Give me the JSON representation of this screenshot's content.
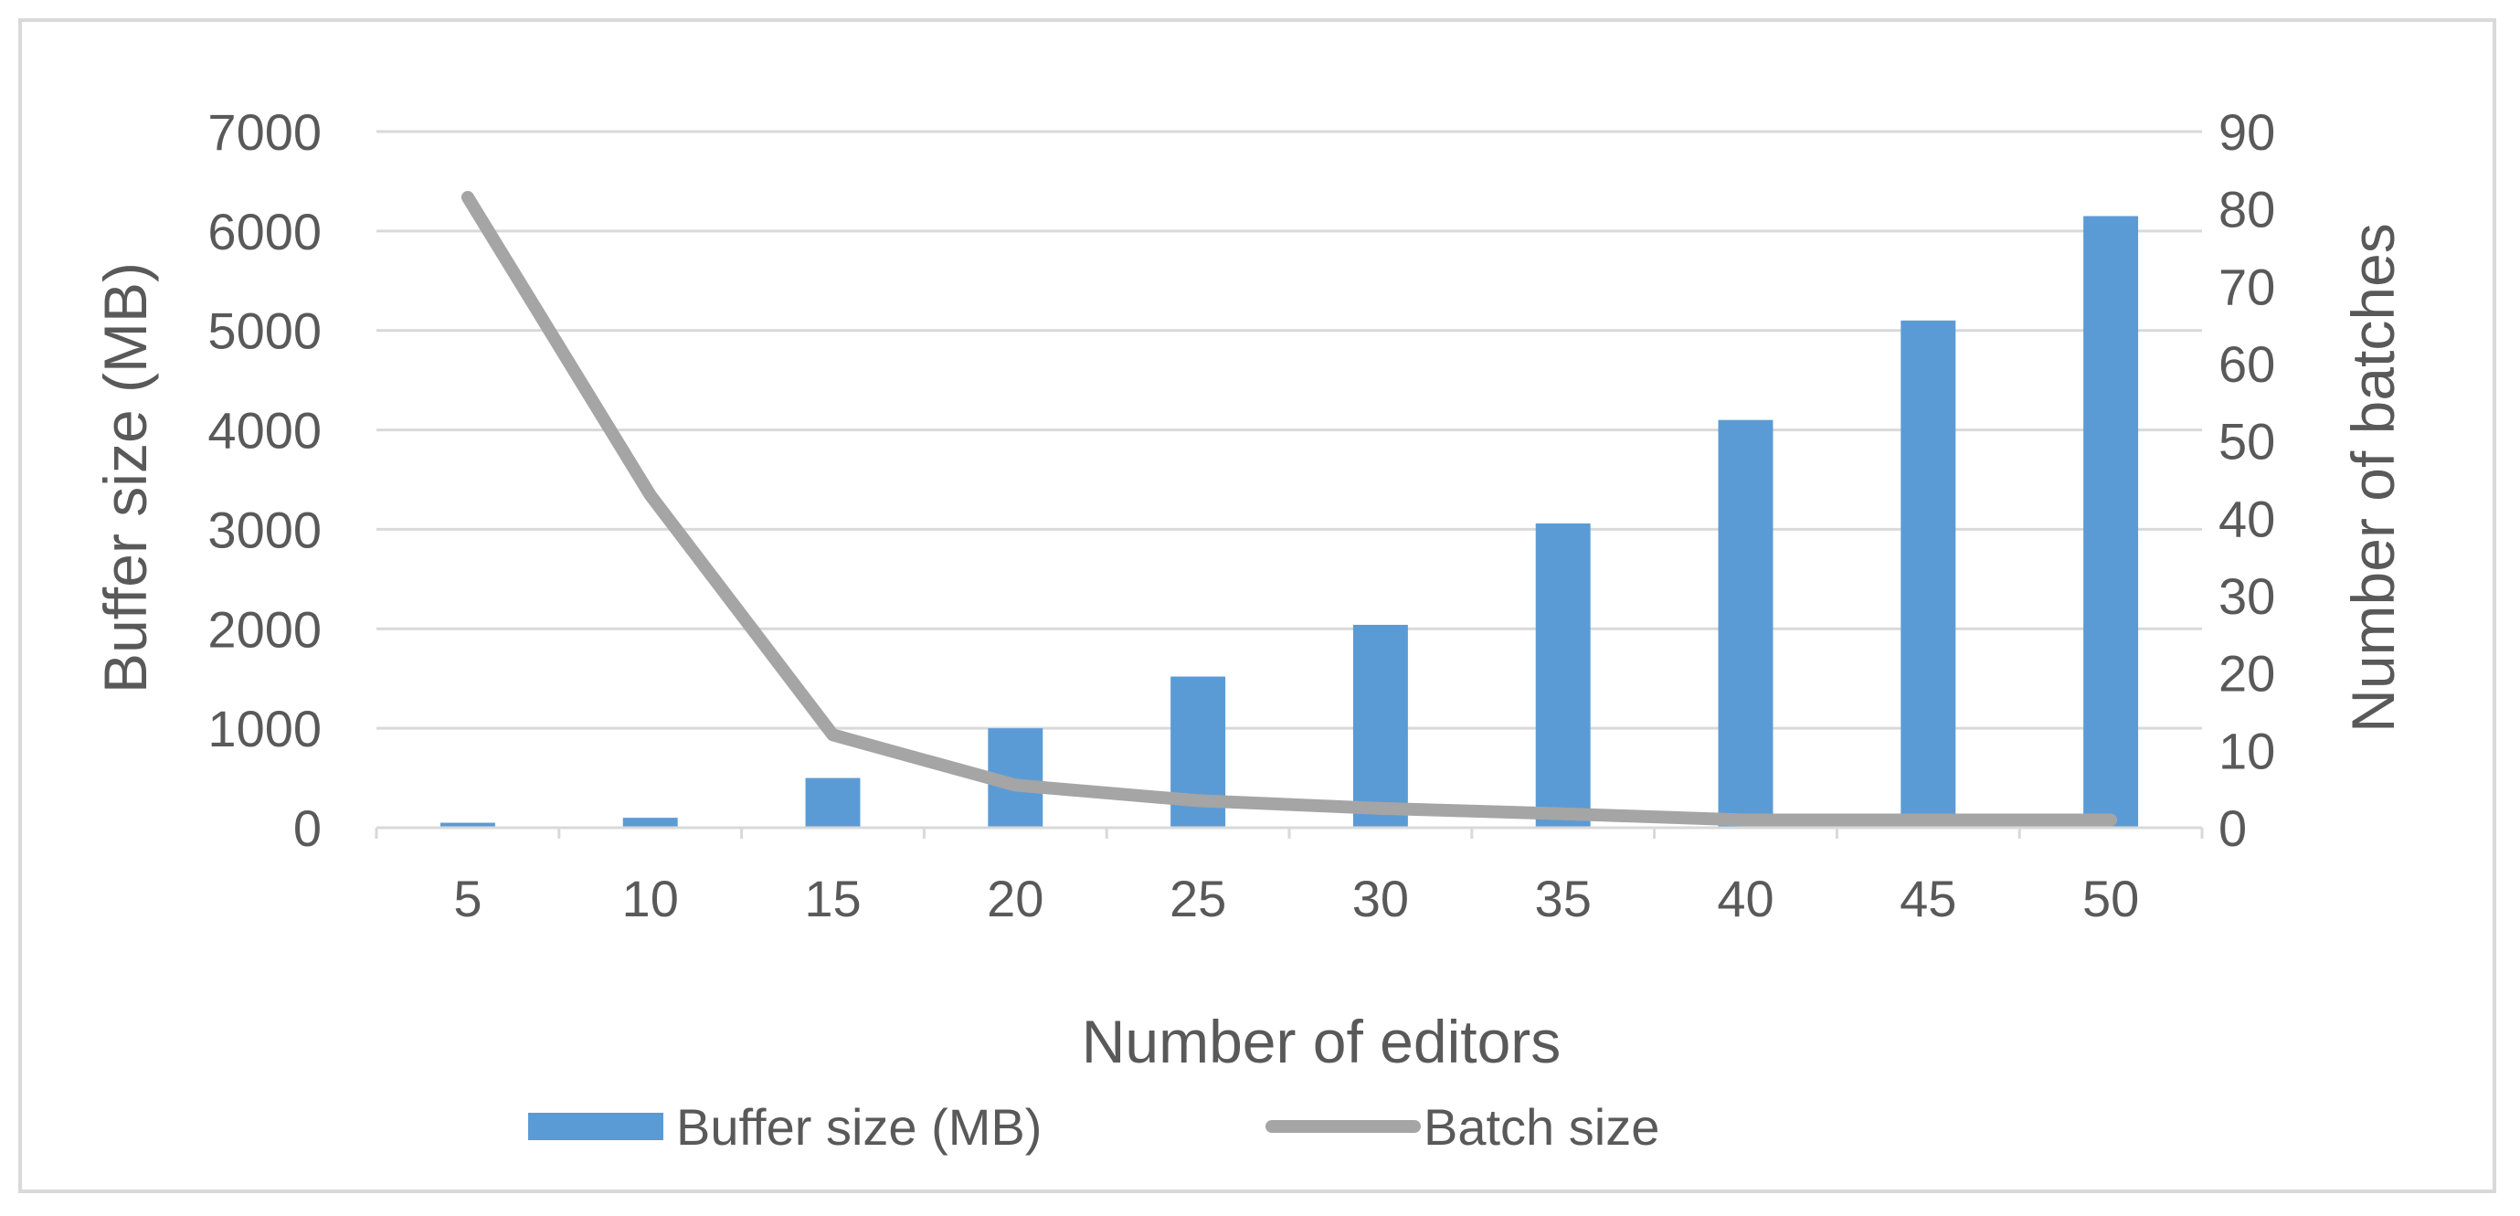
{
  "chart_data": {
    "type": "bar",
    "title": "",
    "categories": [
      "5",
      "10",
      "15",
      "20",
      "25",
      "30",
      "35",
      "40",
      "45",
      "50"
    ],
    "xlabel": "Number of editors",
    "ylabel": "Buffer size (MB)",
    "y2label": "Number of batches",
    "ylim": [
      0,
      7000
    ],
    "y2lim": [
      0,
      90
    ],
    "yticks": [
      "0",
      "1000",
      "2000",
      "3000",
      "4000",
      "5000",
      "6000",
      "7000"
    ],
    "y2ticks": [
      "0",
      "10",
      "20",
      "30",
      "40",
      "50",
      "60",
      "70",
      "80",
      "90"
    ],
    "grid": true,
    "legend_position": "bottom",
    "series": [
      {
        "name": "Buffer size (MB)",
        "type": "bar",
        "axis": "left",
        "color": "#5b9bd5",
        "values": [
          50,
          100,
          500,
          1000,
          1520,
          2040,
          3060,
          4100,
          5100,
          6150
        ]
      },
      {
        "name": "Batch size",
        "type": "line",
        "axis": "right",
        "color": "#a5a5a5",
        "values": [
          81.5,
          43,
          12,
          5.5,
          3.5,
          2.5,
          1.8,
          1,
          1,
          1
        ]
      }
    ]
  }
}
